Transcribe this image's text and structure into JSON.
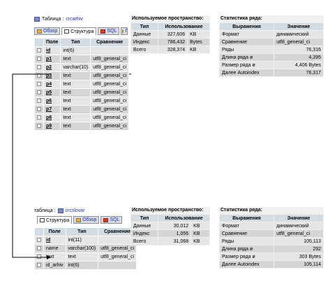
{
  "block1": {
    "title_label": "Таблица :",
    "table_name": "crcarhiv",
    "tabs": [
      {
        "label": "Обзор",
        "icon": "browse-icon",
        "active": false
      },
      {
        "label": "Структура",
        "icon": "structure-icon",
        "active": true
      },
      {
        "label": "SQL",
        "icon": "sql-icon",
        "active": false
      },
      {
        "label": "П",
        "icon": "search-icon",
        "active": false
      }
    ],
    "columns_headers": [
      "Поле",
      "Тип",
      "Сравнение"
    ],
    "rows": [
      {
        "field": "id",
        "type": "int(6)",
        "collation": ""
      },
      {
        "field": "p1",
        "type": "text",
        "collation": "utf8_general_ci"
      },
      {
        "field": "p2",
        "type": "varchar(10)",
        "collation": "utf8_general_ci"
      },
      {
        "field": "p3",
        "type": "text",
        "collation": "utf8_general_ci"
      },
      {
        "field": "p4",
        "type": "text",
        "collation": "utf8_general_ci"
      },
      {
        "field": "p5",
        "type": "text",
        "collation": "utf8_general_ci"
      },
      {
        "field": "p6",
        "type": "text",
        "collation": "utf8_general_ci"
      },
      {
        "field": "p7",
        "type": "text",
        "collation": "utf8_general_ci"
      },
      {
        "field": "p8",
        "type": "text",
        "collation": "utf8_general_ci"
      },
      {
        "field": "p9",
        "type": "text",
        "collation": "utf8_general_ci"
      }
    ],
    "space": {
      "title": "Используемое пространство:",
      "headers": [
        "Тип",
        "Использование"
      ],
      "rows": [
        {
          "type": "Данные",
          "usage": "327,606",
          "unit": "KB"
        },
        {
          "type": "Индекс",
          "usage": "786,432",
          "unit": "Bytes"
        },
        {
          "type": "Всего",
          "usage": "328,374",
          "unit": "KB"
        }
      ]
    },
    "stats": {
      "title": "Статистика ряда:",
      "headers": [
        "Выражения",
        "Значение"
      ],
      "rows": [
        {
          "name": "Формат",
          "value": "динамический"
        },
        {
          "name": "Сравнение",
          "value": "utf8_general_ci"
        },
        {
          "name": "Ряды",
          "value": "76,316"
        },
        {
          "name": "Длина ряда ø",
          "value": "4,395"
        },
        {
          "name": "Размер ряда  ø",
          "value": "4,406 Bytes"
        },
        {
          "name": "Далее Autoindex",
          "value": "76,317"
        }
      ]
    }
  },
  "block2": {
    "title_label": "таблица :",
    "table_name": "crcslovar",
    "tabs": [
      {
        "label": "Структура",
        "icon": "structure-icon",
        "active": true
      },
      {
        "label": "Обзор",
        "icon": "browse-icon",
        "active": false
      },
      {
        "label": "SQL",
        "icon": "sql-icon",
        "active": false
      }
    ],
    "columns_headers": [
      "Поле",
      "Тип",
      "Сравнение"
    ],
    "rows": [
      {
        "field": "id",
        "type": "int(11)",
        "collation": ""
      },
      {
        "field": "name",
        "type": "varchar(100)",
        "collation": "utf8_general_ci"
      },
      {
        "field": "text",
        "type": "text",
        "collation": "utf8_general_ci"
      },
      {
        "field": "id_arhiv",
        "type": "int(6)",
        "collation": ""
      }
    ],
    "space": {
      "title": "Используемое пространство:",
      "headers": [
        "Тип",
        "Использование"
      ],
      "rows": [
        {
          "type": "Данные",
          "usage": "30,012",
          "unit": "KB"
        },
        {
          "type": "Индекс",
          "usage": "1,056",
          "unit": "KB"
        },
        {
          "type": "Всего",
          "usage": "31,068",
          "unit": "KB"
        }
      ]
    },
    "stats": {
      "title": "Статистика ряда:",
      "headers": [
        "Выражения",
        "Значение"
      ],
      "rows": [
        {
          "name": "Формат",
          "value": "динамический"
        },
        {
          "name": "Сравнение",
          "value": "utf8_general_ci"
        },
        {
          "name": "Ряды",
          "value": "105,113"
        },
        {
          "name": "Длина ряда ø",
          "value": "292"
        },
        {
          "name": "Размер ряда  ø",
          "value": "303 Bytes"
        },
        {
          "name": "Далее Autoindex",
          "value": "105,114"
        }
      ]
    }
  },
  "colors": {
    "header_bg": "#d3dce3",
    "row_odd": "#e5e5e5",
    "row_even": "#d5d5d5",
    "link": "#223399",
    "connector": "#000000"
  }
}
